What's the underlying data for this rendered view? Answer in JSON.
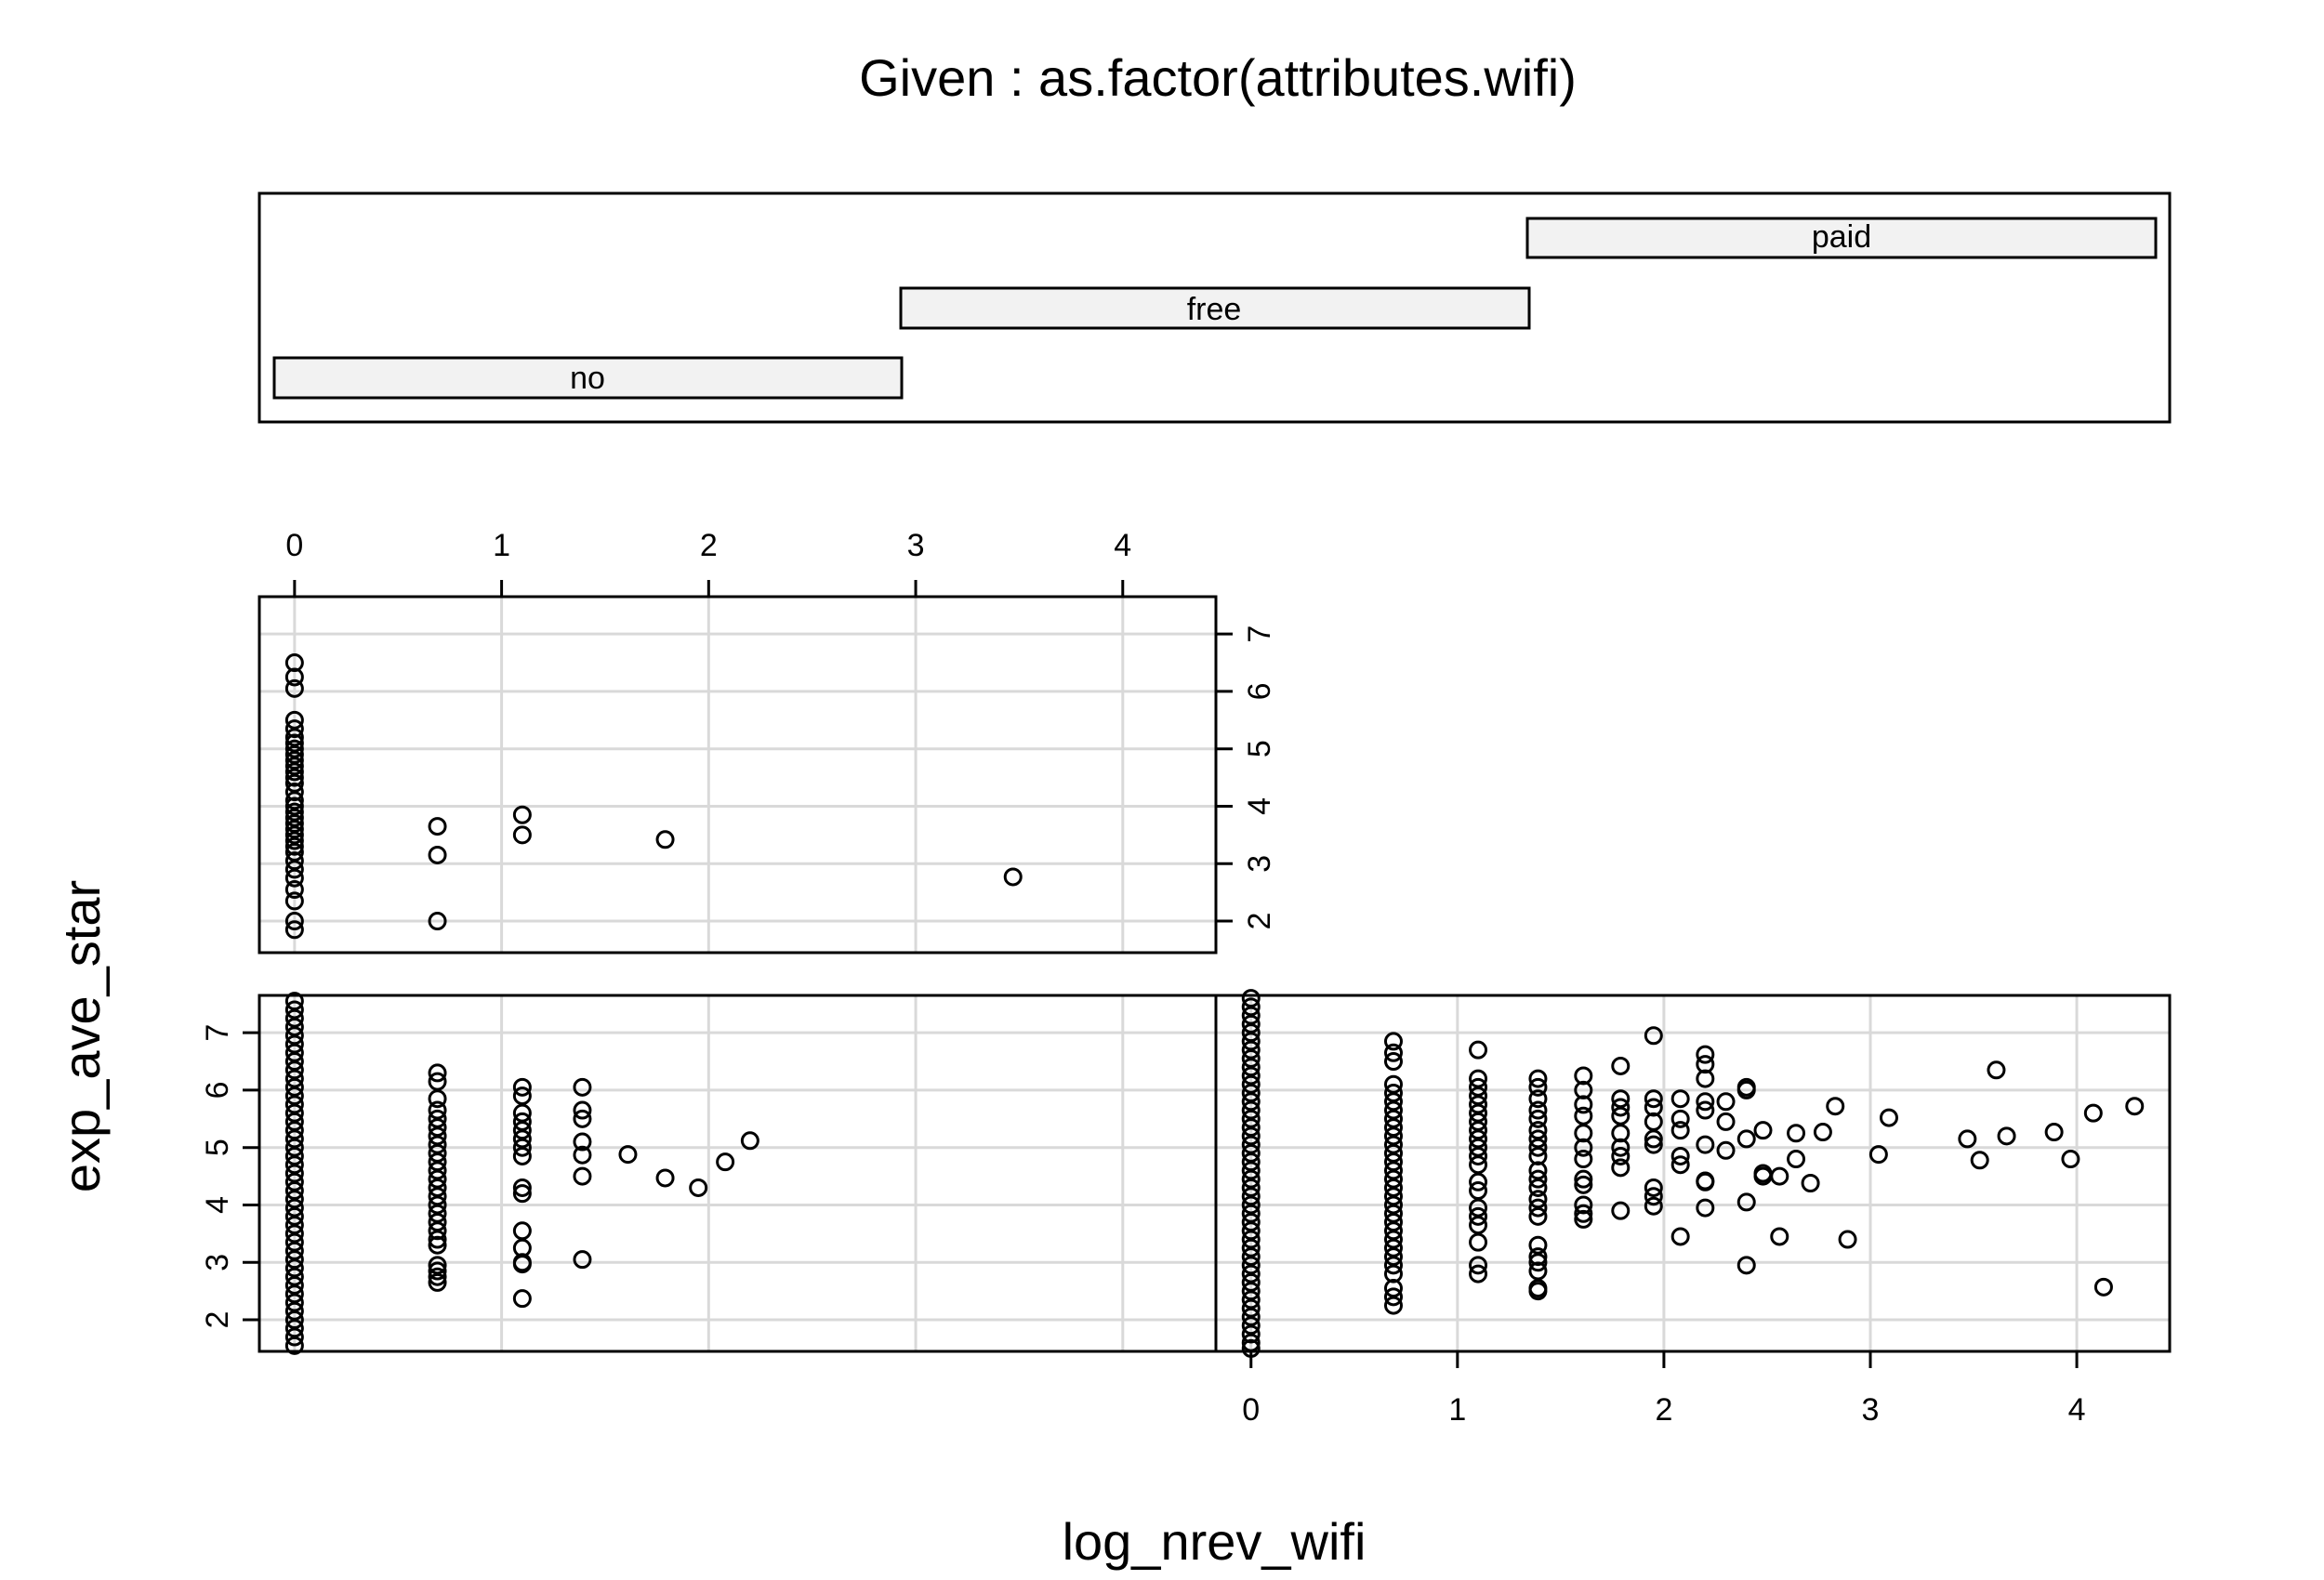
{
  "chart_data": {
    "type": "scatter",
    "title": "Given : as.factor(attributes.wifi)",
    "xlabel": "log_nrev_wifi",
    "ylabel": "exp_ave_star",
    "xlim": [
      -0.17,
      4.45
    ],
    "ylim": [
      1.45,
      7.65
    ],
    "x_ticks": [
      "0",
      "1",
      "2",
      "3",
      "4"
    ],
    "y_ticks": [
      "2",
      "3",
      "4",
      "5",
      "6",
      "7"
    ],
    "grid": true,
    "given_levels": [
      "no",
      "free",
      "paid"
    ],
    "panels": [
      {
        "name": "paid",
        "points": [
          [
            0,
            6.5
          ],
          [
            0,
            6.25
          ],
          [
            0,
            6.05
          ],
          [
            0,
            5.5
          ],
          [
            0,
            5.35
          ],
          [
            0,
            5.2
          ],
          [
            0,
            5.1
          ],
          [
            0,
            5.0
          ],
          [
            0,
            4.9
          ],
          [
            0,
            4.8
          ],
          [
            0,
            4.7
          ],
          [
            0,
            4.6
          ],
          [
            0,
            4.5
          ],
          [
            0,
            4.4
          ],
          [
            0,
            4.25
          ],
          [
            0,
            4.1
          ],
          [
            0,
            4.0
          ],
          [
            0,
            3.9
          ],
          [
            0,
            3.8
          ],
          [
            0,
            3.7
          ],
          [
            0,
            3.6
          ],
          [
            0,
            3.5
          ],
          [
            0,
            3.4
          ],
          [
            0,
            3.3
          ],
          [
            0,
            3.2
          ],
          [
            0,
            3.05
          ],
          [
            0,
            2.9
          ],
          [
            0,
            2.75
          ],
          [
            0,
            2.55
          ],
          [
            0,
            2.35
          ],
          [
            0,
            2.0
          ],
          [
            0,
            1.85
          ],
          [
            0.69,
            3.65
          ],
          [
            0.69,
            3.15
          ],
          [
            0.69,
            2.0
          ],
          [
            1.1,
            3.85
          ],
          [
            1.1,
            3.5
          ],
          [
            1.79,
            3.42
          ],
          [
            3.47,
            2.77
          ]
        ]
      },
      {
        "name": "no",
        "points": [
          [
            0,
            7.55
          ],
          [
            0,
            7.4
          ],
          [
            0,
            7.25
          ],
          [
            0,
            7.1
          ],
          [
            0,
            6.95
          ],
          [
            0,
            6.8
          ],
          [
            0,
            6.65
          ],
          [
            0,
            6.5
          ],
          [
            0,
            6.35
          ],
          [
            0,
            6.2
          ],
          [
            0,
            6.05
          ],
          [
            0,
            5.9
          ],
          [
            0,
            5.75
          ],
          [
            0,
            5.6
          ],
          [
            0,
            5.45
          ],
          [
            0,
            5.3
          ],
          [
            0,
            5.15
          ],
          [
            0,
            5.0
          ],
          [
            0,
            4.85
          ],
          [
            0,
            4.7
          ],
          [
            0,
            4.55
          ],
          [
            0,
            4.4
          ],
          [
            0,
            4.25
          ],
          [
            0,
            4.1
          ],
          [
            0,
            3.95
          ],
          [
            0,
            3.8
          ],
          [
            0,
            3.65
          ],
          [
            0,
            3.5
          ],
          [
            0,
            3.35
          ],
          [
            0,
            3.2
          ],
          [
            0,
            3.05
          ],
          [
            0,
            2.9
          ],
          [
            0,
            2.75
          ],
          [
            0,
            2.6
          ],
          [
            0,
            2.45
          ],
          [
            0,
            2.3
          ],
          [
            0,
            2.15
          ],
          [
            0,
            2.0
          ],
          [
            0,
            1.85
          ],
          [
            0,
            1.7
          ],
          [
            0,
            1.55
          ],
          [
            0.69,
            6.3
          ],
          [
            0.69,
            6.15
          ],
          [
            0.69,
            5.85
          ],
          [
            0.69,
            5.65
          ],
          [
            0.69,
            5.5
          ],
          [
            0.69,
            5.35
          ],
          [
            0.69,
            5.2
          ],
          [
            0.69,
            5.05
          ],
          [
            0.69,
            4.9
          ],
          [
            0.69,
            4.75
          ],
          [
            0.69,
            4.6
          ],
          [
            0.69,
            4.45
          ],
          [
            0.69,
            4.3
          ],
          [
            0.69,
            4.15
          ],
          [
            0.69,
            4.0
          ],
          [
            0.69,
            3.85
          ],
          [
            0.69,
            3.7
          ],
          [
            0.69,
            3.55
          ],
          [
            0.69,
            3.4
          ],
          [
            0.69,
            3.3
          ],
          [
            0.69,
            2.95
          ],
          [
            0.69,
            2.85
          ],
          [
            0.69,
            2.75
          ],
          [
            0.69,
            2.65
          ],
          [
            1.1,
            6.05
          ],
          [
            1.1,
            5.9
          ],
          [
            1.1,
            5.6
          ],
          [
            1.1,
            5.45
          ],
          [
            1.1,
            5.3
          ],
          [
            1.1,
            5.15
          ],
          [
            1.1,
            5.0
          ],
          [
            1.1,
            4.85
          ],
          [
            1.1,
            4.3
          ],
          [
            1.1,
            4.2
          ],
          [
            1.1,
            3.55
          ],
          [
            1.1,
            3.25
          ],
          [
            1.1,
            3.0
          ],
          [
            1.1,
            2.97
          ],
          [
            1.1,
            2.37
          ],
          [
            1.39,
            6.05
          ],
          [
            1.39,
            5.65
          ],
          [
            1.39,
            5.5
          ],
          [
            1.39,
            5.1
          ],
          [
            1.39,
            4.87
          ],
          [
            1.39,
            4.5
          ],
          [
            1.39,
            3.05
          ],
          [
            1.61,
            4.88
          ],
          [
            1.79,
            4.47
          ],
          [
            1.95,
            4.3
          ],
          [
            2.08,
            4.75
          ],
          [
            2.2,
            5.12
          ]
        ]
      },
      {
        "name": "free",
        "points": [
          [
            0,
            7.6
          ],
          [
            0,
            7.45
          ],
          [
            0,
            7.3
          ],
          [
            0,
            7.15
          ],
          [
            0,
            7.0
          ],
          [
            0,
            6.85
          ],
          [
            0,
            6.7
          ],
          [
            0,
            6.55
          ],
          [
            0,
            6.4
          ],
          [
            0,
            6.25
          ],
          [
            0,
            6.1
          ],
          [
            0,
            5.95
          ],
          [
            0,
            5.8
          ],
          [
            0,
            5.65
          ],
          [
            0,
            5.5
          ],
          [
            0,
            5.35
          ],
          [
            0,
            5.2
          ],
          [
            0,
            5.05
          ],
          [
            0,
            4.9
          ],
          [
            0,
            4.75
          ],
          [
            0,
            4.6
          ],
          [
            0,
            4.45
          ],
          [
            0,
            4.3
          ],
          [
            0,
            4.15
          ],
          [
            0,
            4.0
          ],
          [
            0,
            3.85
          ],
          [
            0,
            3.7
          ],
          [
            0,
            3.55
          ],
          [
            0,
            3.4
          ],
          [
            0,
            3.25
          ],
          [
            0,
            3.1
          ],
          [
            0,
            2.95
          ],
          [
            0,
            2.8
          ],
          [
            0,
            2.65
          ],
          [
            0,
            2.5
          ],
          [
            0,
            2.35
          ],
          [
            0,
            2.2
          ],
          [
            0,
            2.05
          ],
          [
            0,
            1.9
          ],
          [
            0,
            1.75
          ],
          [
            0,
            1.6
          ],
          [
            0,
            1.5
          ],
          [
            0.69,
            6.85
          ],
          [
            0.69,
            6.65
          ],
          [
            0.69,
            6.5
          ],
          [
            0.69,
            6.1
          ],
          [
            0.69,
            5.95
          ],
          [
            0.69,
            5.8
          ],
          [
            0.69,
            5.65
          ],
          [
            0.69,
            5.5
          ],
          [
            0.69,
            5.35
          ],
          [
            0.69,
            5.2
          ],
          [
            0.69,
            5.05
          ],
          [
            0.69,
            4.9
          ],
          [
            0.69,
            4.75
          ],
          [
            0.69,
            4.6
          ],
          [
            0.69,
            4.45
          ],
          [
            0.69,
            4.3
          ],
          [
            0.69,
            4.15
          ],
          [
            0.69,
            4.0
          ],
          [
            0.69,
            3.85
          ],
          [
            0.69,
            3.7
          ],
          [
            0.69,
            3.55
          ],
          [
            0.69,
            3.4
          ],
          [
            0.69,
            3.25
          ],
          [
            0.69,
            3.1
          ],
          [
            0.69,
            2.95
          ],
          [
            0.69,
            2.8
          ],
          [
            0.69,
            2.55
          ],
          [
            0.69,
            2.4
          ],
          [
            0.69,
            2.25
          ],
          [
            1.1,
            6.7
          ],
          [
            1.1,
            6.2
          ],
          [
            1.1,
            6.05
          ],
          [
            1.1,
            5.9
          ],
          [
            1.1,
            5.75
          ],
          [
            1.1,
            5.6
          ],
          [
            1.1,
            5.45
          ],
          [
            1.1,
            5.3
          ],
          [
            1.1,
            5.15
          ],
          [
            1.1,
            5.0
          ],
          [
            1.1,
            4.85
          ],
          [
            1.1,
            4.7
          ],
          [
            1.1,
            4.4
          ],
          [
            1.1,
            4.25
          ],
          [
            1.1,
            3.95
          ],
          [
            1.1,
            3.8
          ],
          [
            1.1,
            3.65
          ],
          [
            1.1,
            3.35
          ],
          [
            1.1,
            2.95
          ],
          [
            1.1,
            2.8
          ],
          [
            1.39,
            6.2
          ],
          [
            1.39,
            6.05
          ],
          [
            1.39,
            5.85
          ],
          [
            1.39,
            5.65
          ],
          [
            1.39,
            5.5
          ],
          [
            1.39,
            5.3
          ],
          [
            1.39,
            5.15
          ],
          [
            1.39,
            5.0
          ],
          [
            1.39,
            4.85
          ],
          [
            1.39,
            4.6
          ],
          [
            1.39,
            4.45
          ],
          [
            1.39,
            4.3
          ],
          [
            1.39,
            4.1
          ],
          [
            1.39,
            3.95
          ],
          [
            1.39,
            3.8
          ],
          [
            1.39,
            3.3
          ],
          [
            1.39,
            3.1
          ],
          [
            1.39,
            3.0
          ],
          [
            1.39,
            2.85
          ],
          [
            1.39,
            2.55
          ],
          [
            1.39,
            2.5
          ],
          [
            1.61,
            6.25
          ],
          [
            1.61,
            6.0
          ],
          [
            1.61,
            5.75
          ],
          [
            1.61,
            5.55
          ],
          [
            1.61,
            5.25
          ],
          [
            1.61,
            5.0
          ],
          [
            1.61,
            4.8
          ],
          [
            1.61,
            4.45
          ],
          [
            1.61,
            4.35
          ],
          [
            1.61,
            4.0
          ],
          [
            1.61,
            3.85
          ],
          [
            1.61,
            3.75
          ],
          [
            1.79,
            6.42
          ],
          [
            1.79,
            5.85
          ],
          [
            1.79,
            5.7
          ],
          [
            1.79,
            5.55
          ],
          [
            1.79,
            5.25
          ],
          [
            1.79,
            5.0
          ],
          [
            1.79,
            4.85
          ],
          [
            1.79,
            4.65
          ],
          [
            1.79,
            3.9
          ],
          [
            1.95,
            6.95
          ],
          [
            1.95,
            5.85
          ],
          [
            1.95,
            5.7
          ],
          [
            1.95,
            5.45
          ],
          [
            1.95,
            5.15
          ],
          [
            1.95,
            5.05
          ],
          [
            1.95,
            4.3
          ],
          [
            1.95,
            4.15
          ],
          [
            1.95,
            3.98
          ],
          [
            2.08,
            5.85
          ],
          [
            2.08,
            5.5
          ],
          [
            2.08,
            5.3
          ],
          [
            2.08,
            4.85
          ],
          [
            2.08,
            4.7
          ],
          [
            2.08,
            3.45
          ],
          [
            2.2,
            6.62
          ],
          [
            2.2,
            6.45
          ],
          [
            2.2,
            6.2
          ],
          [
            2.2,
            5.8
          ],
          [
            2.2,
            5.65
          ],
          [
            2.2,
            5.05
          ],
          [
            2.2,
            4.42
          ],
          [
            2.2,
            4.4
          ],
          [
            2.2,
            3.95
          ],
          [
            2.3,
            5.8
          ],
          [
            2.3,
            5.45
          ],
          [
            2.3,
            4.95
          ],
          [
            2.4,
            6.05
          ],
          [
            2.4,
            6.0
          ],
          [
            2.4,
            5.15
          ],
          [
            2.4,
            4.05
          ],
          [
            2.4,
            2.95
          ],
          [
            2.48,
            5.3
          ],
          [
            2.48,
            4.55
          ],
          [
            2.48,
            4.5
          ],
          [
            2.56,
            4.5
          ],
          [
            2.56,
            3.45
          ],
          [
            2.64,
            5.25
          ],
          [
            2.64,
            4.8
          ],
          [
            2.71,
            4.38
          ],
          [
            2.77,
            5.27
          ],
          [
            2.83,
            5.72
          ],
          [
            2.89,
            3.4
          ],
          [
            3.04,
            4.88
          ],
          [
            3.09,
            5.52
          ],
          [
            3.47,
            5.15
          ],
          [
            3.53,
            4.78
          ],
          [
            3.61,
            6.35
          ],
          [
            3.66,
            5.2
          ],
          [
            3.89,
            5.27
          ],
          [
            3.97,
            4.8
          ],
          [
            4.08,
            5.6
          ],
          [
            4.13,
            2.57
          ],
          [
            4.28,
            5.72
          ]
        ]
      }
    ]
  }
}
